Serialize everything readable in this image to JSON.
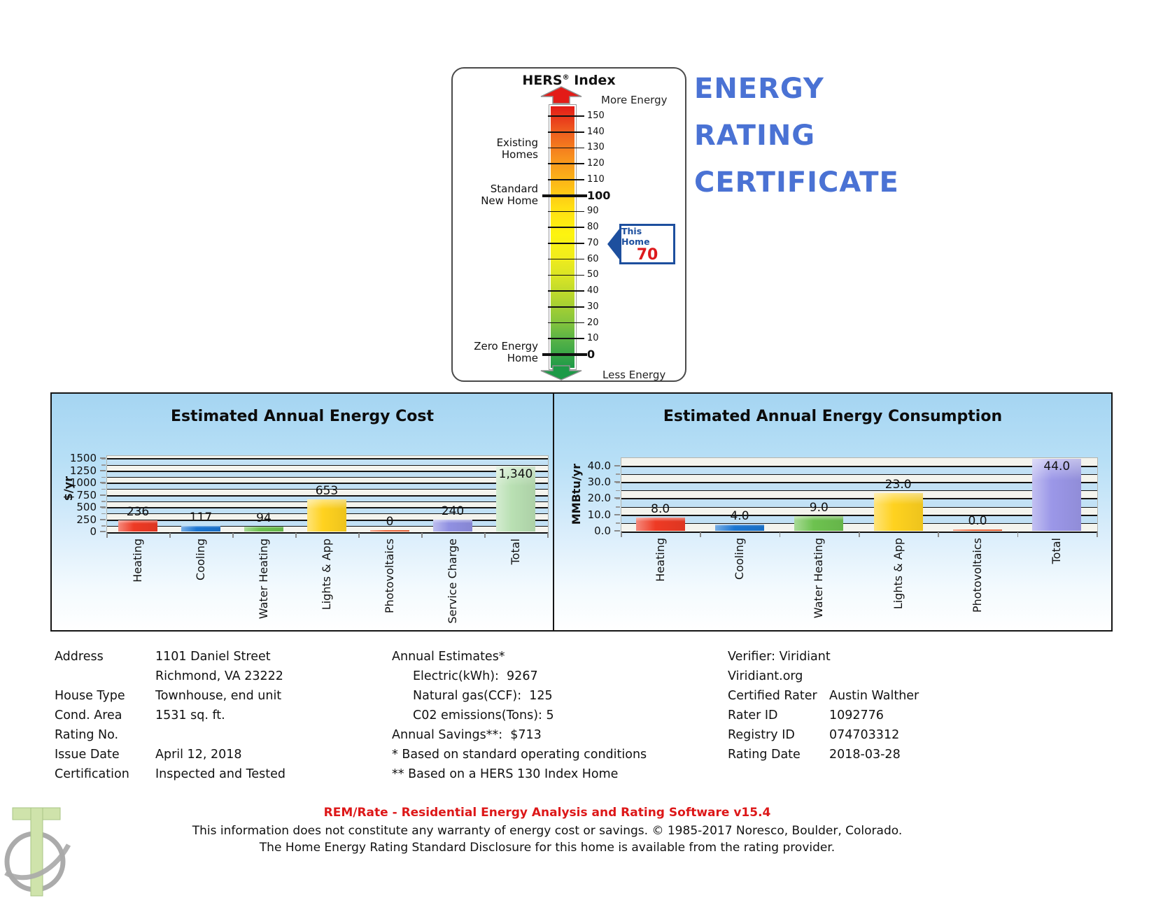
{
  "page_title": "Energy Rating Certificate",
  "colors": {
    "title_blue": "#4a72d4",
    "footer_red": "#dd1718",
    "pointer_blue": "#1d4f9e",
    "pointer_value_red": "#dd1a1d",
    "plot_band_blue": "#c2e1f5",
    "plot_band_white": "#f4f4ee",
    "gauge_top_red": "#e31b17",
    "gauge_bottom_green": "#1d9a47"
  },
  "cert_title": {
    "line1": "ENERGY",
    "line2": "RATING",
    "line3": "CERTIFICATE"
  },
  "hers_gauge": {
    "title_prefix": "HERS",
    "title_reg": "®",
    "title_suffix": " Index",
    "more_energy": "More Energy",
    "less_energy": "Less Energy",
    "scale_min": 0,
    "scale_max": 150,
    "ticks": [
      {
        "v": 150,
        "label": "150",
        "bold": false
      },
      {
        "v": 140,
        "label": "140",
        "bold": false
      },
      {
        "v": 130,
        "label": "130",
        "bold": false
      },
      {
        "v": 120,
        "label": "120",
        "bold": false
      },
      {
        "v": 110,
        "label": "110",
        "bold": false
      },
      {
        "v": 100,
        "label": "100",
        "bold": true
      },
      {
        "v": 90,
        "label": "90",
        "bold": false
      },
      {
        "v": 80,
        "label": "80",
        "bold": false
      },
      {
        "v": 70,
        "label": "70",
        "bold": false
      },
      {
        "v": 60,
        "label": "60",
        "bold": false
      },
      {
        "v": 50,
        "label": "50",
        "bold": false
      },
      {
        "v": 40,
        "label": "40",
        "bold": false
      },
      {
        "v": 30,
        "label": "30",
        "bold": false
      },
      {
        "v": 20,
        "label": "20",
        "bold": false
      },
      {
        "v": 10,
        "label": "10",
        "bold": false
      },
      {
        "v": 0,
        "label": "0",
        "bold": true
      }
    ],
    "side_labels": [
      {
        "v": 129,
        "lines": [
          "Existing",
          "Homes"
        ]
      },
      {
        "v": 100,
        "lines": [
          "Standard",
          "New Home"
        ]
      },
      {
        "v": 1,
        "lines": [
          "Zero Energy",
          "Home"
        ]
      }
    ],
    "this_home": {
      "label": "This Home",
      "value": "70"
    }
  },
  "chart_data": [
    {
      "type": "bar",
      "title": "Estimated Annual Energy Cost",
      "ylabel": "$/yr",
      "categories": [
        "Heating",
        "Cooling",
        "Water Heating",
        "Lights & App",
        "Photovoltaics",
        "Service Charge",
        "Total"
      ],
      "values": [
        236,
        117,
        94,
        653,
        0,
        240,
        1340
      ],
      "value_labels": [
        "236",
        "117",
        "94",
        "653",
        "0",
        "240",
        "1,340"
      ],
      "bar_colors": [
        "#ee3a24",
        "#1b76d2",
        "#6dc24f",
        "#ffd21f",
        "#ee5a2a",
        "#9090e2",
        "#b9e0b3"
      ],
      "ylim": [
        0,
        1500
      ],
      "ytick_step": 250,
      "grid_step": 125,
      "grid": true,
      "legend": false,
      "yticks": [
        {
          "v": 1500,
          "label": "1500"
        },
        {
          "v": 1250,
          "label": "1250"
        },
        {
          "v": 1000,
          "label": "1000"
        },
        {
          "v": 750,
          "label": "750"
        },
        {
          "v": 500,
          "label": "500"
        },
        {
          "v": 250,
          "label": "250"
        },
        {
          "v": 0,
          "label": "0"
        }
      ]
    },
    {
      "type": "bar",
      "title": "Estimated Annual Energy Consumption",
      "ylabel": "MMBtu/yr",
      "categories": [
        "Heating",
        "Cooling",
        "Water Heating",
        "Lights & App",
        "Photovoltaics",
        "Total"
      ],
      "values": [
        8,
        4,
        9,
        23,
        0,
        44
      ],
      "value_labels": [
        "8.0",
        "4.0",
        "9.0",
        "23.0",
        "0.0",
        "44.0"
      ],
      "bar_colors": [
        "#ee3a24",
        "#1b76d2",
        "#6dc24f",
        "#ffd21f",
        "#ee5a2a",
        "#9b97e8"
      ],
      "ylim": [
        0,
        40
      ],
      "ytick_step": 10,
      "grid_step": 5,
      "grid": true,
      "legend": false,
      "yticks": [
        {
          "v": 40,
          "label": "40.0"
        },
        {
          "v": 30,
          "label": "30.0"
        },
        {
          "v": 20,
          "label": "20.0"
        },
        {
          "v": 10,
          "label": "10.0"
        },
        {
          "v": 0,
          "label": "0.0"
        }
      ]
    }
  ],
  "details": {
    "left": [
      {
        "label": "Address",
        "value": "1101 Daniel Street"
      },
      {
        "label": "",
        "value": "Richmond, VA 23222"
      },
      {
        "label": "House Type",
        "value": "Townhouse, end unit"
      },
      {
        "label": "Cond. Area",
        "value": "1531 sq. ft."
      },
      {
        "label": "Rating No.",
        "value": ""
      },
      {
        "label": "Issue Date",
        "value": "April 12, 2018"
      },
      {
        "label": "Certification",
        "value": "Inspected and Tested"
      }
    ],
    "middle": [
      {
        "text": "Annual Estimates*",
        "indent": false
      },
      {
        "text": "Electric(kWh):  9267",
        "indent": true
      },
      {
        "text": "Natural gas(CCF):  125",
        "indent": true
      },
      {
        "text": "C02 emissions(Tons): 5",
        "indent": true
      },
      {
        "text": "Annual Savings**:  $713",
        "indent": false
      },
      {
        "text": "* Based on standard operating conditions",
        "indent": false
      },
      {
        "text": "** Based on a HERS 130 Index Home",
        "indent": false
      }
    ],
    "right": [
      {
        "label": "Verifier: Viridiant",
        "value": ""
      },
      {
        "label": "Viridiant.org",
        "value": ""
      },
      {
        "label": "Certified Rater",
        "value": "Austin Walther"
      },
      {
        "label": "Rater ID",
        "value": "1092776"
      },
      {
        "label": "Registry ID",
        "value": "074703312"
      },
      {
        "label": "Rating Date",
        "value": "2018-03-28"
      }
    ]
  },
  "footer": {
    "software_line": "REM/Rate - Residential Energy Analysis and Rating Software v15.4",
    "line2": "This information does not constitute any warranty of energy cost or savings. © 1985-2017 Noresco, Boulder, Colorado.",
    "line3": "The Home Energy Rating Standard Disclosure for this home is available from the rating provider."
  }
}
